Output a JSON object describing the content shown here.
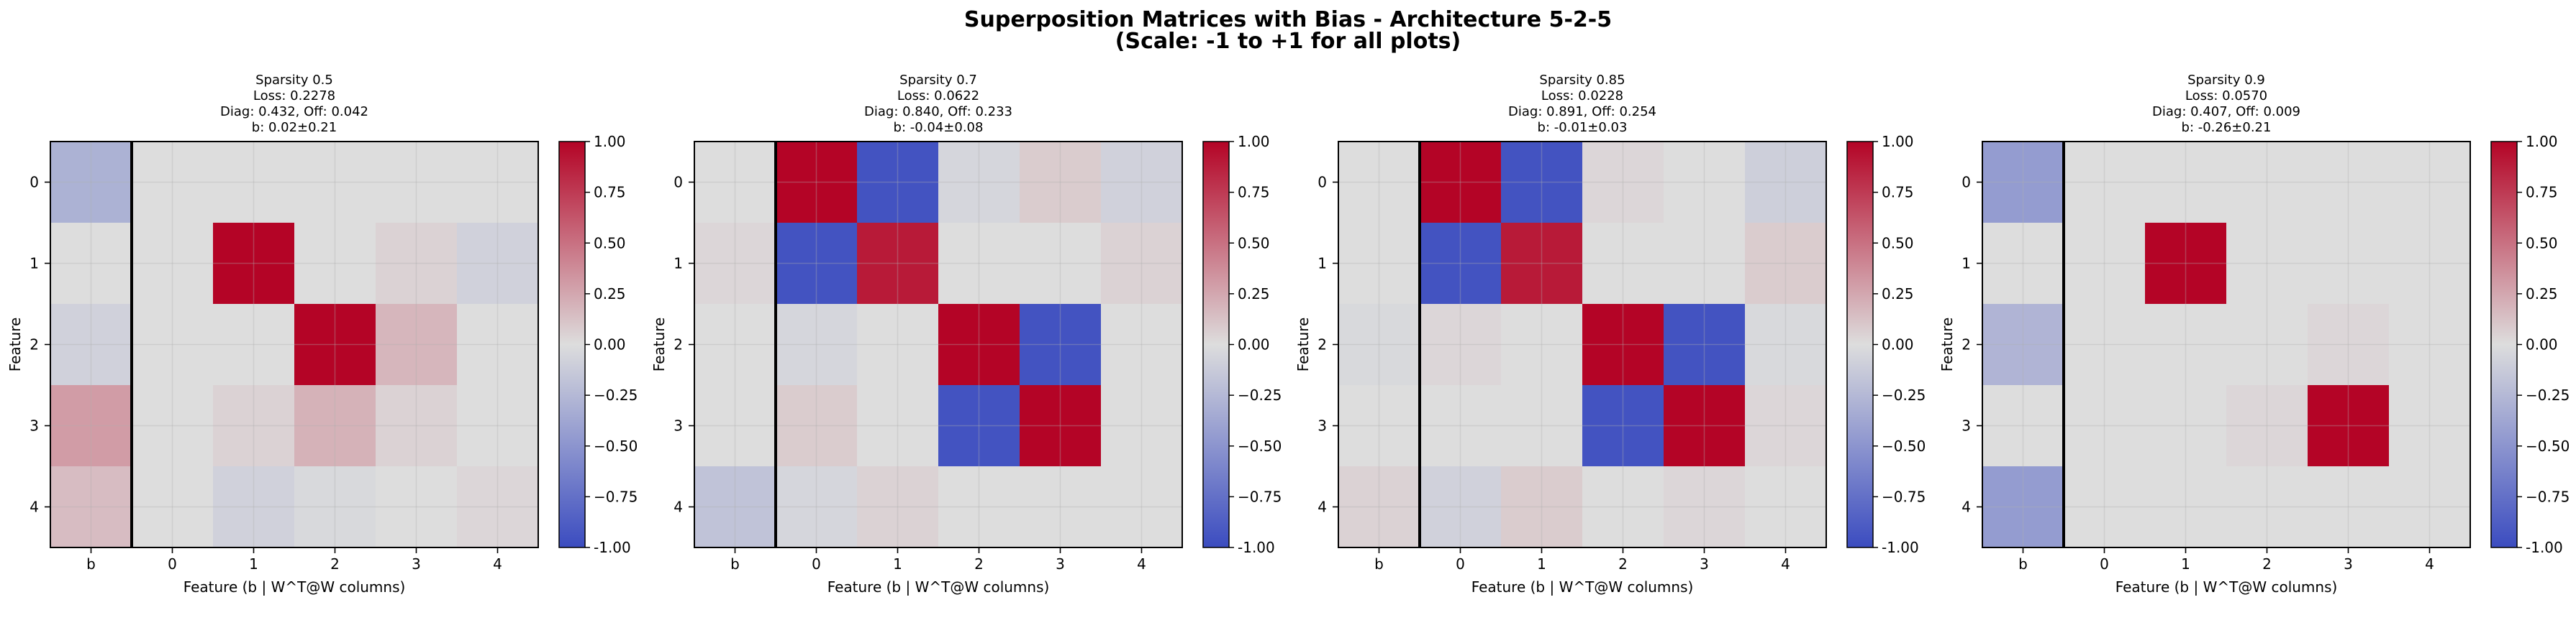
{
  "suptitle_line1": "Superposition Matrices with Bias - Architecture 5-2-5",
  "suptitle_line2": "(Scale: -1 to +1 for all plots)",
  "colormap": "coolwarm",
  "colors": {
    "cold": "#3b4cc0",
    "neutral": "#dddddd",
    "hot": "#b40426"
  },
  "chart_data": [
    {
      "type": "heatmap",
      "title": [
        "Sparsity 0.5",
        "Loss: 0.2278",
        "Diag: 0.432, Off: 0.042",
        "b: 0.02±0.21"
      ],
      "xlabel": "Feature (b | W^T@W columns)",
      "ylabel": "Feature",
      "x_ticklabels": [
        "b",
        "0",
        "1",
        "2",
        "3",
        "4"
      ],
      "y_ticklabels": [
        "0",
        "1",
        "2",
        "3",
        "4"
      ],
      "clim": [
        -1,
        1
      ],
      "colorbar_ticks": [
        "-1.00",
        "−0.75",
        "−0.50",
        "−0.25",
        "0.00",
        "0.25",
        "0.50",
        "0.75",
        "1.00"
      ],
      "grid": true,
      "values": [
        [
          -0.3,
          0.0,
          0.0,
          0.0,
          0.0,
          0.0
        ],
        [
          0.0,
          0.0,
          1.0,
          0.0,
          0.05,
          -0.08
        ],
        [
          -0.08,
          0.0,
          0.0,
          1.0,
          0.18,
          0.0
        ],
        [
          0.3,
          0.0,
          0.05,
          0.2,
          0.05,
          0.0
        ],
        [
          0.15,
          0.0,
          -0.08,
          -0.03,
          0.0,
          0.03
        ]
      ]
    },
    {
      "type": "heatmap",
      "title": [
        "Sparsity 0.7",
        "Loss: 0.0622",
        "Diag: 0.840, Off: 0.233",
        "b: -0.04±0.08"
      ],
      "xlabel": "Feature (b | W^T@W columns)",
      "ylabel": "Feature",
      "x_ticklabels": [
        "b",
        "0",
        "1",
        "2",
        "3",
        "4"
      ],
      "y_ticklabels": [
        "0",
        "1",
        "2",
        "3",
        "4"
      ],
      "clim": [
        -1,
        1
      ],
      "colorbar_ticks": [
        "-1.00",
        "−0.75",
        "−0.50",
        "−0.25",
        "0.00",
        "0.25",
        "0.50",
        "0.75",
        "1.00"
      ],
      "grid": true,
      "values": [
        [
          0.0,
          1.0,
          -0.95,
          -0.05,
          0.08,
          -0.08
        ],
        [
          0.03,
          -0.95,
          0.9,
          0.0,
          0.0,
          0.05
        ],
        [
          0.0,
          -0.05,
          0.0,
          1.0,
          -0.95,
          0.0
        ],
        [
          0.0,
          0.08,
          0.0,
          -0.95,
          1.0,
          0.0
        ],
        [
          -0.18,
          -0.05,
          0.05,
          0.0,
          0.0,
          0.0
        ]
      ]
    },
    {
      "type": "heatmap",
      "title": [
        "Sparsity 0.85",
        "Loss: 0.0228",
        "Diag: 0.891, Off: 0.254",
        "b: -0.01±0.03"
      ],
      "xlabel": "Feature (b | W^T@W columns)",
      "ylabel": "Feature",
      "x_ticklabels": [
        "b",
        "0",
        "1",
        "2",
        "3",
        "4"
      ],
      "y_ticklabels": [
        "0",
        "1",
        "2",
        "3",
        "4"
      ],
      "clim": [
        -1,
        1
      ],
      "colorbar_ticks": [
        "-1.00",
        "−0.75",
        "−0.50",
        "−0.25",
        "0.00",
        "0.25",
        "0.50",
        "0.75",
        "1.00"
      ],
      "grid": true,
      "values": [
        [
          0.0,
          1.0,
          -0.95,
          0.03,
          0.0,
          -0.1
        ],
        [
          0.0,
          -0.95,
          0.9,
          0.0,
          0.0,
          0.08
        ],
        [
          -0.03,
          0.03,
          0.0,
          1.0,
          -0.95,
          -0.03
        ],
        [
          0.0,
          0.0,
          0.0,
          -0.95,
          1.0,
          0.03
        ],
        [
          0.05,
          -0.08,
          0.08,
          0.0,
          0.03,
          0.0
        ]
      ]
    },
    {
      "type": "heatmap",
      "title": [
        "Sparsity 0.9",
        "Loss: 0.0570",
        "Diag: 0.407, Off: 0.009",
        "b: -0.26±0.21"
      ],
      "xlabel": "Feature (b | W^T@W columns)",
      "ylabel": "Feature",
      "x_ticklabels": [
        "b",
        "0",
        "1",
        "2",
        "3",
        "4"
      ],
      "y_ticklabels": [
        "0",
        "1",
        "2",
        "3",
        "4"
      ],
      "clim": [
        -1,
        1
      ],
      "colorbar_ticks": [
        "-1.00",
        "−0.75",
        "−0.50",
        "−0.25",
        "0.00",
        "0.25",
        "0.50",
        "0.75",
        "1.00"
      ],
      "grid": true,
      "values": [
        [
          -0.45,
          0.0,
          0.0,
          0.0,
          0.0,
          0.0
        ],
        [
          0.0,
          0.0,
          1.0,
          0.0,
          0.0,
          0.0
        ],
        [
          -0.28,
          0.0,
          0.0,
          0.0,
          0.03,
          0.0
        ],
        [
          0.0,
          0.0,
          0.0,
          0.03,
          1.0,
          0.0
        ],
        [
          -0.45,
          0.0,
          0.0,
          0.0,
          0.0,
          0.0
        ]
      ]
    }
  ]
}
